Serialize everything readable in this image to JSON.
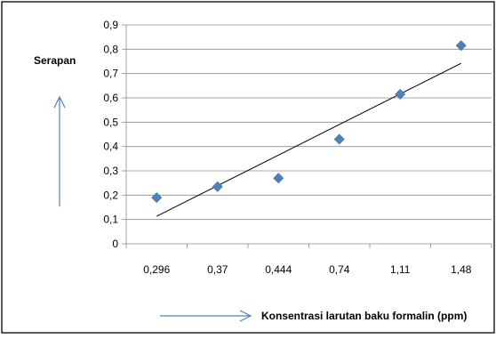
{
  "chart_data": {
    "type": "scatter",
    "title": "",
    "xlabel": "Konsentrasi larutan baku formalin (ppm)",
    "ylabel": "Serapan",
    "x_categories": [
      "0,296",
      "0,37",
      "0,444",
      "0,74",
      "1,11",
      "1,48"
    ],
    "series": [
      {
        "values": [
          0.19,
          0.235,
          0.27,
          0.43,
          0.615,
          0.815
        ],
        "color": "#4f81bd"
      }
    ],
    "trendline": {
      "type": "linear",
      "from": 0.113,
      "to": 0.742,
      "color": "#000000"
    },
    "ylim": [
      0,
      0.9
    ],
    "y_ticks": [
      {
        "value": 0,
        "label": "0"
      },
      {
        "value": 0.1,
        "label": "0,1"
      },
      {
        "value": 0.2,
        "label": "0,2"
      },
      {
        "value": 0.3,
        "label": "0,3"
      },
      {
        "value": 0.4,
        "label": "0,4"
      },
      {
        "value": 0.5,
        "label": "0,5"
      },
      {
        "value": 0.6,
        "label": "0,6"
      },
      {
        "value": 0.7,
        "label": "0,7"
      },
      {
        "value": 0.8,
        "label": "0,8"
      },
      {
        "value": 0.9,
        "label": "0,9"
      }
    ],
    "grid": true,
    "legend": "none"
  }
}
